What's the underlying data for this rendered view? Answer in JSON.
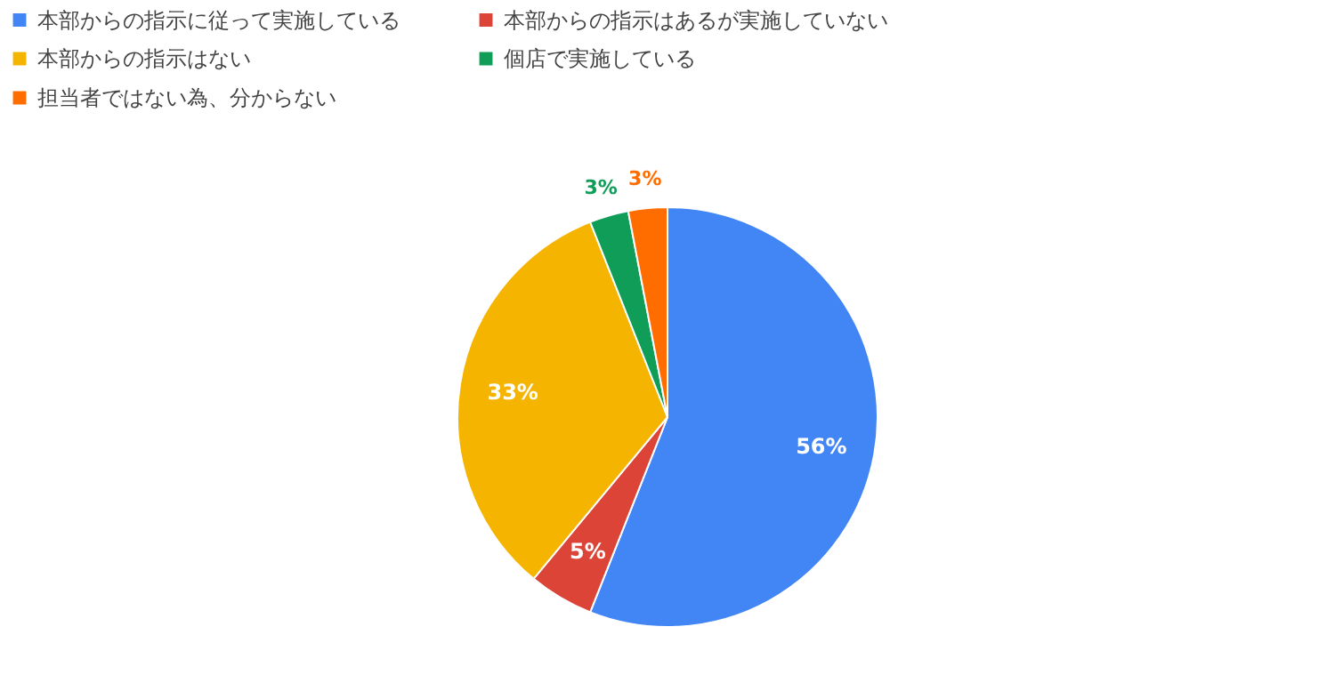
{
  "chart_data": {
    "type": "pie",
    "categories": [
      "本部からの指示に従って実施している",
      "本部からの指示はあるが実施していない",
      "本部からの指示はない",
      "個店で実施している",
      "担当者ではない為、分からない"
    ],
    "values": [
      56,
      5,
      33,
      3,
      3
    ],
    "colors": [
      "#4285f4",
      "#db4437",
      "#f4b400",
      "#0f9d58",
      "#ff6d01"
    ],
    "value_labels": [
      "56%",
      "5%",
      "33%",
      "3%",
      "3%"
    ],
    "legend": "top"
  }
}
